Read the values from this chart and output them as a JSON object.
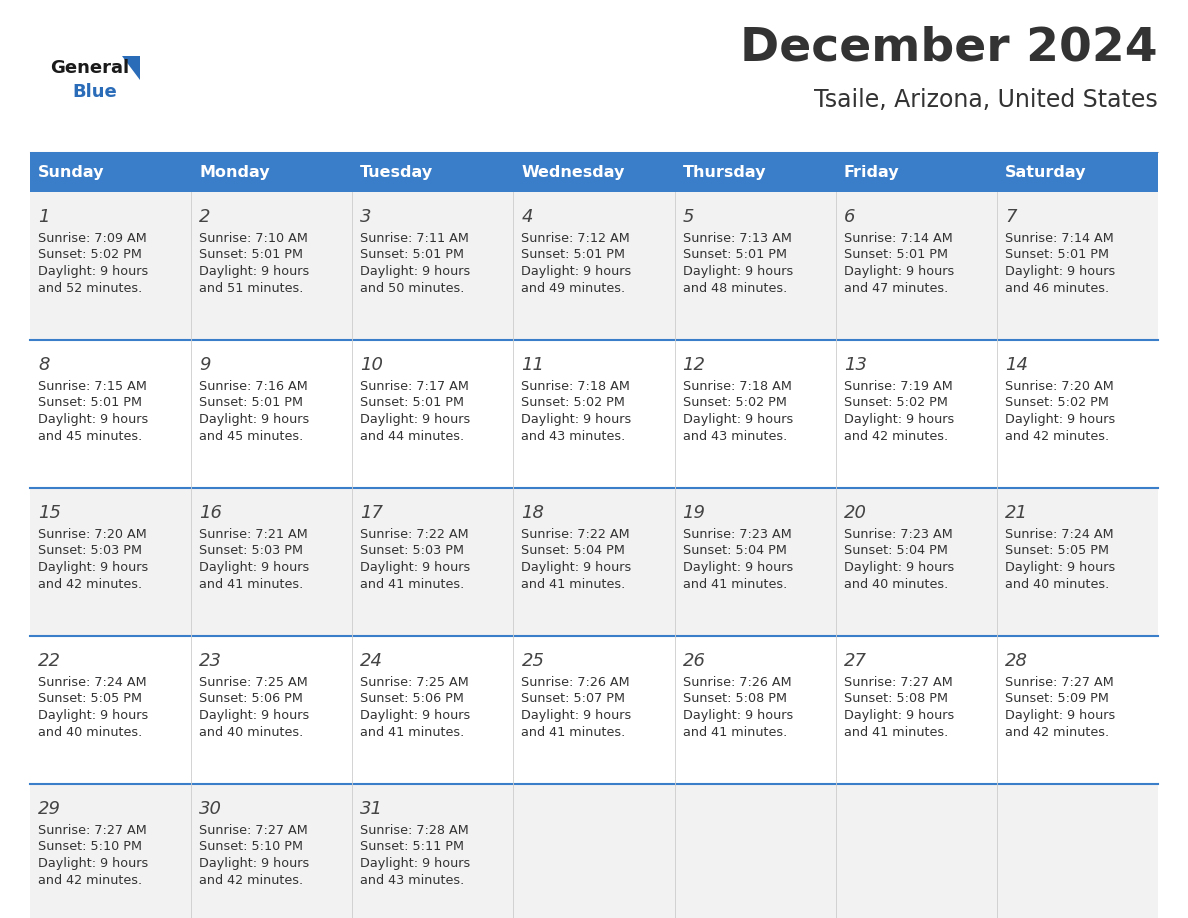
{
  "title": "December 2024",
  "subtitle": "Tsaile, Arizona, United States",
  "days_of_week": [
    "Sunday",
    "Monday",
    "Tuesday",
    "Wednesday",
    "Thursday",
    "Friday",
    "Saturday"
  ],
  "header_bg": "#3A7DC9",
  "header_text": "#FFFFFF",
  "row_bg_odd": "#F2F2F2",
  "row_bg_even": "#FFFFFF",
  "separator_color": "#3A7DC9",
  "text_color": "#333333",
  "day_num_color": "#444444",
  "calendar_data": [
    [
      {
        "day": 1,
        "sunrise": "7:09 AM",
        "sunset": "5:02 PM",
        "daylight_h": "9 hours",
        "daylight_m": "and 52 minutes."
      },
      {
        "day": 2,
        "sunrise": "7:10 AM",
        "sunset": "5:01 PM",
        "daylight_h": "9 hours",
        "daylight_m": "and 51 minutes."
      },
      {
        "day": 3,
        "sunrise": "7:11 AM",
        "sunset": "5:01 PM",
        "daylight_h": "9 hours",
        "daylight_m": "and 50 minutes."
      },
      {
        "day": 4,
        "sunrise": "7:12 AM",
        "sunset": "5:01 PM",
        "daylight_h": "9 hours",
        "daylight_m": "and 49 minutes."
      },
      {
        "day": 5,
        "sunrise": "7:13 AM",
        "sunset": "5:01 PM",
        "daylight_h": "9 hours",
        "daylight_m": "and 48 minutes."
      },
      {
        "day": 6,
        "sunrise": "7:14 AM",
        "sunset": "5:01 PM",
        "daylight_h": "9 hours",
        "daylight_m": "and 47 minutes."
      },
      {
        "day": 7,
        "sunrise": "7:14 AM",
        "sunset": "5:01 PM",
        "daylight_h": "9 hours",
        "daylight_m": "and 46 minutes."
      }
    ],
    [
      {
        "day": 8,
        "sunrise": "7:15 AM",
        "sunset": "5:01 PM",
        "daylight_h": "9 hours",
        "daylight_m": "and 45 minutes."
      },
      {
        "day": 9,
        "sunrise": "7:16 AM",
        "sunset": "5:01 PM",
        "daylight_h": "9 hours",
        "daylight_m": "and 45 minutes."
      },
      {
        "day": 10,
        "sunrise": "7:17 AM",
        "sunset": "5:01 PM",
        "daylight_h": "9 hours",
        "daylight_m": "and 44 minutes."
      },
      {
        "day": 11,
        "sunrise": "7:18 AM",
        "sunset": "5:02 PM",
        "daylight_h": "9 hours",
        "daylight_m": "and 43 minutes."
      },
      {
        "day": 12,
        "sunrise": "7:18 AM",
        "sunset": "5:02 PM",
        "daylight_h": "9 hours",
        "daylight_m": "and 43 minutes."
      },
      {
        "day": 13,
        "sunrise": "7:19 AM",
        "sunset": "5:02 PM",
        "daylight_h": "9 hours",
        "daylight_m": "and 42 minutes."
      },
      {
        "day": 14,
        "sunrise": "7:20 AM",
        "sunset": "5:02 PM",
        "daylight_h": "9 hours",
        "daylight_m": "and 42 minutes."
      }
    ],
    [
      {
        "day": 15,
        "sunrise": "7:20 AM",
        "sunset": "5:03 PM",
        "daylight_h": "9 hours",
        "daylight_m": "and 42 minutes."
      },
      {
        "day": 16,
        "sunrise": "7:21 AM",
        "sunset": "5:03 PM",
        "daylight_h": "9 hours",
        "daylight_m": "and 41 minutes."
      },
      {
        "day": 17,
        "sunrise": "7:22 AM",
        "sunset": "5:03 PM",
        "daylight_h": "9 hours",
        "daylight_m": "and 41 minutes."
      },
      {
        "day": 18,
        "sunrise": "7:22 AM",
        "sunset": "5:04 PM",
        "daylight_h": "9 hours",
        "daylight_m": "and 41 minutes."
      },
      {
        "day": 19,
        "sunrise": "7:23 AM",
        "sunset": "5:04 PM",
        "daylight_h": "9 hours",
        "daylight_m": "and 41 minutes."
      },
      {
        "day": 20,
        "sunrise": "7:23 AM",
        "sunset": "5:04 PM",
        "daylight_h": "9 hours",
        "daylight_m": "and 40 minutes."
      },
      {
        "day": 21,
        "sunrise": "7:24 AM",
        "sunset": "5:05 PM",
        "daylight_h": "9 hours",
        "daylight_m": "and 40 minutes."
      }
    ],
    [
      {
        "day": 22,
        "sunrise": "7:24 AM",
        "sunset": "5:05 PM",
        "daylight_h": "9 hours",
        "daylight_m": "and 40 minutes."
      },
      {
        "day": 23,
        "sunrise": "7:25 AM",
        "sunset": "5:06 PM",
        "daylight_h": "9 hours",
        "daylight_m": "and 40 minutes."
      },
      {
        "day": 24,
        "sunrise": "7:25 AM",
        "sunset": "5:06 PM",
        "daylight_h": "9 hours",
        "daylight_m": "and 41 minutes."
      },
      {
        "day": 25,
        "sunrise": "7:26 AM",
        "sunset": "5:07 PM",
        "daylight_h": "9 hours",
        "daylight_m": "and 41 minutes."
      },
      {
        "day": 26,
        "sunrise": "7:26 AM",
        "sunset": "5:08 PM",
        "daylight_h": "9 hours",
        "daylight_m": "and 41 minutes."
      },
      {
        "day": 27,
        "sunrise": "7:27 AM",
        "sunset": "5:08 PM",
        "daylight_h": "9 hours",
        "daylight_m": "and 41 minutes."
      },
      {
        "day": 28,
        "sunrise": "7:27 AM",
        "sunset": "5:09 PM",
        "daylight_h": "9 hours",
        "daylight_m": "and 42 minutes."
      }
    ],
    [
      {
        "day": 29,
        "sunrise": "7:27 AM",
        "sunset": "5:10 PM",
        "daylight_h": "9 hours",
        "daylight_m": "and 42 minutes."
      },
      {
        "day": 30,
        "sunrise": "7:27 AM",
        "sunset": "5:10 PM",
        "daylight_h": "9 hours",
        "daylight_m": "and 42 minutes."
      },
      {
        "day": 31,
        "sunrise": "7:28 AM",
        "sunset": "5:11 PM",
        "daylight_h": "9 hours",
        "daylight_m": "and 43 minutes."
      },
      null,
      null,
      null,
      null
    ]
  ],
  "logo_color_general": "#1A1A1A",
  "logo_color_blue": "#2B6CB8"
}
